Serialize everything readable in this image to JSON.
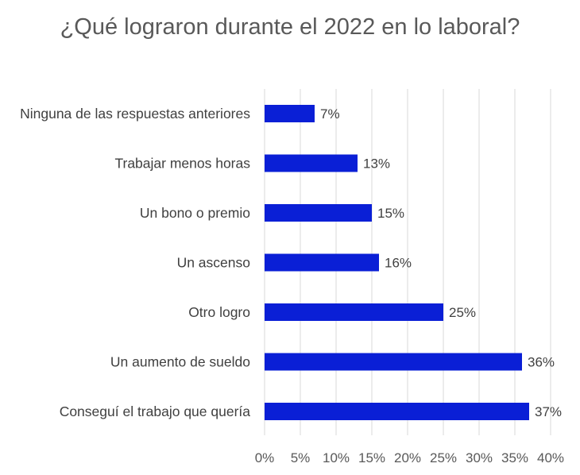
{
  "chart_data": {
    "type": "bar",
    "orientation": "horizontal",
    "title": "¿Qué lograron durante el 2022 en lo laboral?",
    "categories": [
      "Ninguna de las respuestas anteriores",
      "Trabajar menos horas",
      "Un bono o premio",
      "Un ascenso",
      "Otro logro",
      "Un aumento de sueldo",
      "Conseguí el trabajo que quería"
    ],
    "values": [
      7,
      13,
      15,
      16,
      25,
      36,
      37
    ],
    "data_labels": [
      "7%",
      "13%",
      "15%",
      "16%",
      "25%",
      "36%",
      "37%"
    ],
    "xlim": [
      0,
      40
    ],
    "x_ticks": [
      0,
      5,
      10,
      15,
      20,
      25,
      30,
      35,
      40
    ],
    "x_tick_labels": [
      "0%",
      "5%",
      "10%",
      "15%",
      "20%",
      "25%",
      "30%",
      "35%",
      "40%"
    ],
    "xlabel": "",
    "ylabel": "",
    "grid": "vertical",
    "legend": "none",
    "bar_color": "#0a1fd6",
    "gridline_color": "#d9d9d9"
  }
}
